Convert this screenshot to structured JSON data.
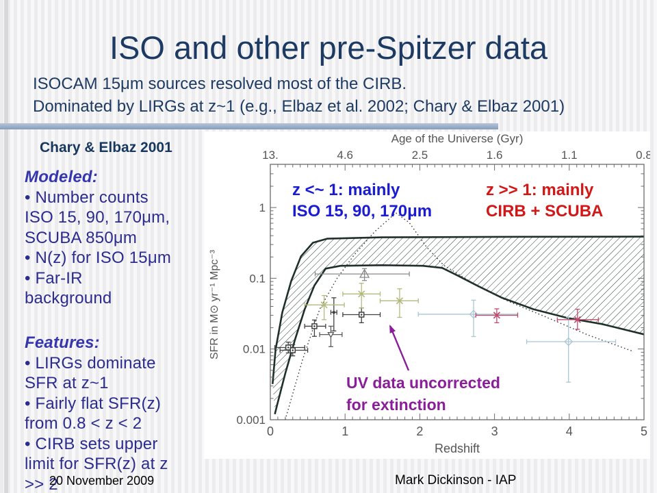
{
  "slide": {
    "title": "ISO and other pre-Spitzer data",
    "subtitle": [
      "ISOCAM 15μm sources resolved most of the CIRB.",
      "Dominated by LIRGs at z~1 (e.g., Elbaz et al. 2002; Chary & Elbaz 2001)"
    ],
    "footer": {
      "date": "20 November 2009",
      "author": "Mark Dickinson - IAP"
    }
  },
  "sidebar": {
    "heading": "Chary & Elbaz 2001",
    "modeled": {
      "heading": "Modeled:",
      "lines": [
        "• Number counts",
        "ISO 15, 90, 170μm,",
        "SCUBA 850μm",
        "• N(z) for ISO 15μm",
        "• Far-IR",
        "background"
      ]
    },
    "features": {
      "heading": "Features:",
      "lines": [
        "• LIRGs dominate",
        "SFR at z~1",
        "• Fairly flat SFR(z)",
        "from 0.8 < z < 2",
        "• CIRB sets upper",
        "limit for SFR(z) at z",
        ">> 2"
      ]
    }
  },
  "annotations": {
    "blue_label": {
      "lines": [
        "z <~ 1:  mainly",
        "ISO 15, 90, 170μm"
      ],
      "color": "#1b1bd2"
    },
    "red_label": {
      "lines": [
        "z >> 1:  mainly",
        "CIRB + SCUBA"
      ],
      "color": "#d31717"
    },
    "purple_label": {
      "lines": [
        "UV data uncorrected",
        "for extinction"
      ],
      "color": "#8b1d9b"
    }
  },
  "chart_data": {
    "type": "scatter",
    "xlabel": "Redshift",
    "ylabel": "SFR in M⊙ yr⁻¹ Mpc⁻³",
    "xlim": [
      0,
      5
    ],
    "ylim": [
      0.001,
      4.1
    ],
    "yscale": "log",
    "grid": false,
    "x_ticks": [
      "0",
      "1",
      "2",
      "3",
      "4",
      "5"
    ],
    "y_ticks": [
      {
        "label": "1",
        "value": 1
      },
      {
        "label": "0.1",
        "value": 0.1
      },
      {
        "label": "0.01",
        "value": 0.01
      },
      {
        "label": "0.001",
        "value": 0.001
      }
    ],
    "top_axis": {
      "title": "Age of the Universe (Gyr)",
      "tick_labels": [
        "13.",
        "4.6",
        "2.5",
        "1.6",
        "1.1",
        "0.8"
      ]
    },
    "band": {
      "description": "hatched envelope of allowed SFR(z) history",
      "upper": [
        [
          0.03,
          0.0032
        ],
        [
          0.07,
          0.0097
        ],
        [
          0.16,
          0.033
        ],
        [
          0.28,
          0.092
        ],
        [
          0.41,
          0.204
        ],
        [
          0.57,
          0.318
        ],
        [
          0.76,
          0.363
        ],
        [
          1.49,
          0.379
        ],
        [
          3.0,
          0.385
        ],
        [
          5.0,
          0.388
        ]
      ],
      "lower": [
        [
          0.06,
          0.0012
        ],
        [
          0.09,
          0.0016
        ],
        [
          0.2,
          0.0045
        ],
        [
          0.33,
          0.0135
        ],
        [
          0.46,
          0.0365
        ],
        [
          0.59,
          0.079
        ],
        [
          0.74,
          0.137
        ],
        [
          0.94,
          0.15
        ],
        [
          1.49,
          0.153
        ],
        [
          2.04,
          0.15
        ],
        [
          2.3,
          0.14
        ],
        [
          2.5,
          0.11
        ],
        [
          2.78,
          0.0775
        ],
        [
          3.1,
          0.053
        ],
        [
          3.52,
          0.0365
        ],
        [
          3.98,
          0.0274
        ],
        [
          4.44,
          0.0225
        ],
        [
          5.0,
          0.0161
        ]
      ]
    },
    "dotted_curve": {
      "description": "UV data uncorrected for extinction",
      "points": [
        [
          0.2,
          0.001
        ],
        [
          0.43,
          0.007
        ],
        [
          0.66,
          0.0365
        ],
        [
          0.89,
          0.099
        ],
        [
          1.12,
          0.213
        ],
        [
          1.4,
          0.46
        ],
        [
          1.68,
          0.84
        ],
        [
          1.86,
          0.61
        ],
        [
          2.09,
          0.277
        ],
        [
          2.32,
          0.153
        ],
        [
          2.69,
          0.088
        ],
        [
          3.15,
          0.049
        ],
        [
          3.7,
          0.028
        ],
        [
          4.25,
          0.0158
        ],
        [
          4.85,
          0.0093
        ]
      ]
    },
    "series": [
      {
        "name": "dark-squares",
        "marker": "square",
        "color": "#3f3f3f",
        "points": [
          {
            "z": 0.24,
            "v": 0.0105,
            "zlo": 0.06,
            "zhi": 0.46,
            "vlo": 0.0088,
            "vhi": 0.0125
          },
          {
            "z": 0.3,
            "v": 0.0096,
            "zlo": 0.13,
            "zhi": 0.5,
            "vlo": 0.008,
            "vhi": 0.0115
          },
          {
            "z": 0.59,
            "v": 0.021,
            "zlo": 0.46,
            "zhi": 0.74,
            "vlo": 0.0151,
            "vhi": 0.0257
          },
          {
            "z": 1.22,
            "v": 0.0306,
            "zlo": 0.97,
            "zhi": 1.47,
            "vlo": 0.0235,
            "vhi": 0.038
          }
        ]
      },
      {
        "name": "dark-triangles",
        "marker": "triangle-down",
        "color": "#5a5a5a",
        "points": [
          {
            "z": 0.81,
            "v": 0.016,
            "zlo": 0.66,
            "zhi": 0.96,
            "vlo": 0.0108,
            "vhi": 0.021
          }
        ]
      },
      {
        "name": "dark-range-point",
        "marker": "dot",
        "color": "#3f3f3f",
        "points": [
          {
            "z": 0.85,
            "v": 0.033,
            "zlo": 0.81,
            "zhi": 0.89,
            "vlo": 0.018,
            "vhi": 0.053
          }
        ]
      },
      {
        "name": "open-triangle",
        "marker": "triangle-open",
        "color": "#8a8a8a",
        "points": [
          {
            "z": 1.26,
            "v": 0.115,
            "zlo": 0.6,
            "zhi": 1.86,
            "vlo": 0.093,
            "vhi": 0.137
          }
        ]
      },
      {
        "name": "olive-crosses",
        "marker": "x",
        "color": "#b4b97e",
        "points": [
          {
            "z": 0.72,
            "v": 0.042,
            "zlo": 0.46,
            "zhi": 0.99,
            "vlo": 0.026,
            "vhi": 0.057
          },
          {
            "z": 1.22,
            "v": 0.06,
            "zlo": 0.97,
            "zhi": 1.47,
            "vlo": 0.038,
            "vhi": 0.085
          },
          {
            "z": 1.73,
            "v": 0.048,
            "zlo": 1.47,
            "zhi": 1.98,
            "vlo": 0.028,
            "vhi": 0.071
          }
        ]
      },
      {
        "name": "lightblue-diamonds",
        "marker": "diamond",
        "color": "#a9c7d6",
        "points": [
          {
            "z": 2.72,
            "v": 0.031,
            "zlo": 1.98,
            "zhi": 3.31,
            "vlo": 0.015,
            "vhi": 0.049
          },
          {
            "z": 3.99,
            "v": 0.0127,
            "zlo": 3.43,
            "zhi": 4.62,
            "vlo": 0.0034,
            "vhi": 0.028
          }
        ]
      },
      {
        "name": "crimson-crosses",
        "marker": "x",
        "color": "#c14a6e",
        "points": [
          {
            "z": 3.03,
            "v": 0.03,
            "zlo": 2.75,
            "zhi": 3.31,
            "vlo": 0.0235,
            "vhi": 0.037
          },
          {
            "z": 4.11,
            "v": 0.026,
            "zlo": 3.84,
            "zhi": 4.39,
            "vlo": 0.019,
            "vhi": 0.0365
          }
        ]
      }
    ]
  }
}
